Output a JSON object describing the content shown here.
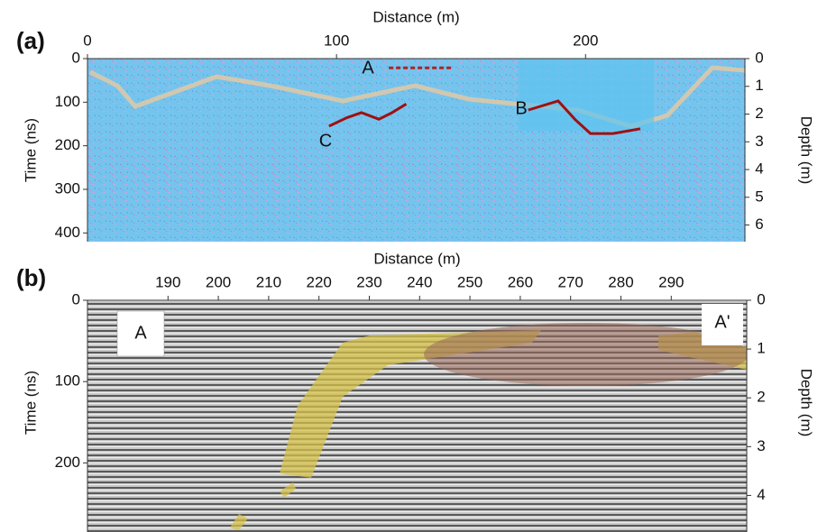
{
  "chart_data": [
    {
      "type": "line",
      "label": "(a)",
      "xlabel": "Distance (m)",
      "ylabel": "Time (ns)",
      "y2label": "Depth (m)",
      "xlim": [
        0,
        264
      ],
      "xticks": [
        0,
        100,
        200
      ],
      "ylim": [
        0,
        420
      ],
      "yticks": [
        0,
        100,
        200,
        300,
        400
      ],
      "y2lim": [
        0,
        6.6
      ],
      "y2ticks": [
        0,
        1,
        2,
        3,
        4,
        5,
        6
      ],
      "series": [
        {
          "color": "#b22222",
          "dashed": true,
          "x": [
            121,
            146
          ],
          "values": [
            21,
            21
          ]
        },
        {
          "color": "#a01010",
          "dashed": false,
          "x": [
            97,
            104,
            110,
            117,
            122,
            128
          ],
          "values": [
            155,
            136,
            124,
            139,
            125,
            104
          ]
        },
        {
          "color": "#a01010",
          "dashed": false,
          "x": [
            177,
            189,
            196,
            202,
            211,
            222
          ],
          "values": [
            118,
            97,
            141,
            172,
            172,
            161
          ]
        }
      ],
      "annotations": [
        "A",
        "B",
        "C"
      ]
    },
    {
      "type": "line",
      "label": "(b)",
      "xlabel": "Distance (m)",
      "ylabel": "Time (ns)",
      "y2label": "Depth (m)",
      "xlim": [
        174,
        305
      ],
      "xticks": [
        190,
        200,
        210,
        220,
        230,
        240,
        250,
        260,
        270,
        280,
        290
      ],
      "ylim": [
        0,
        285
      ],
      "yticks": [
        0,
        100,
        200
      ],
      "y2lim": [
        0,
        4.75
      ],
      "y2ticks": [
        0,
        1,
        2,
        3,
        4
      ],
      "series": [],
      "annotations": [
        "A",
        "A'"
      ]
    }
  ]
}
